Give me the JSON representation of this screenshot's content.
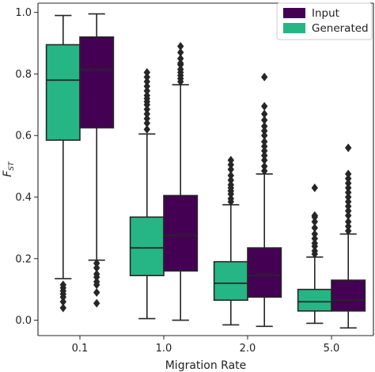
{
  "colors": {
    "input": "#440154",
    "generated": "#26b584",
    "outline": "#262626",
    "flier": "#262626"
  },
  "chart_data": {
    "type": "boxplot",
    "xlabel": "Migration Rate",
    "ylabel": "F_ST",
    "ylabel_main": "F",
    "ylabel_sub": "ST",
    "ylim": [
      -0.05,
      1.03
    ],
    "yticks": [
      "0.0",
      "0.2",
      "0.4",
      "0.6",
      "0.8",
      "1.0"
    ],
    "categories": [
      "0.1",
      "1.0",
      "2.0",
      "5.0"
    ],
    "legend": {
      "placement": "top-right",
      "entries": [
        "Input",
        "Generated"
      ]
    },
    "series": [
      {
        "name": "Generated",
        "boxes": [
          {
            "whisker_low": 0.135,
            "q1": 0.585,
            "median": 0.78,
            "q3": 0.895,
            "whisker_high": 0.99,
            "fliers": [
              0.115,
              0.105,
              0.095,
              0.085,
              0.075,
              0.06,
              0.04
            ]
          },
          {
            "whisker_low": 0.005,
            "q1": 0.145,
            "median": 0.235,
            "q3": 0.335,
            "whisker_high": 0.605,
            "fliers": [
              0.62,
              0.64,
              0.655,
              0.67,
              0.685,
              0.7,
              0.71,
              0.72,
              0.73,
              0.745,
              0.76,
              0.775,
              0.79,
              0.805
            ]
          },
          {
            "whisker_low": -0.015,
            "q1": 0.065,
            "median": 0.12,
            "q3": 0.19,
            "whisker_high": 0.375,
            "fliers": [
              0.385,
              0.395,
              0.41,
              0.42,
              0.43,
              0.44,
              0.455,
              0.47,
              0.49,
              0.505,
              0.52
            ]
          },
          {
            "whisker_low": -0.01,
            "q1": 0.03,
            "median": 0.06,
            "q3": 0.1,
            "whisker_high": 0.205,
            "fliers": [
              0.215,
              0.225,
              0.24,
              0.25,
              0.265,
              0.28,
              0.3,
              0.32,
              0.335,
              0.34,
              0.43
            ]
          }
        ]
      },
      {
        "name": "Input",
        "boxes": [
          {
            "whisker_low": 0.195,
            "q1": 0.625,
            "median": 0.815,
            "q3": 0.92,
            "whisker_high": 0.995,
            "fliers": [
              0.185,
              0.17,
              0.15,
              0.14,
              0.125,
              0.115,
              0.09,
              0.055
            ]
          },
          {
            "whisker_low": 0.0,
            "q1": 0.16,
            "median": 0.275,
            "q3": 0.405,
            "whisker_high": 0.765,
            "fliers": [
              0.775,
              0.785,
              0.795,
              0.805,
              0.815,
              0.83,
              0.835,
              0.85,
              0.87,
              0.89
            ]
          },
          {
            "whisker_low": -0.02,
            "q1": 0.075,
            "median": 0.145,
            "q3": 0.235,
            "whisker_high": 0.475,
            "fliers": [
              0.485,
              0.5,
              0.52,
              0.535,
              0.55,
              0.565,
              0.58,
              0.6,
              0.615,
              0.63,
              0.65,
              0.67,
              0.695,
              0.79
            ]
          },
          {
            "whisker_low": -0.025,
            "q1": 0.03,
            "median": 0.065,
            "q3": 0.13,
            "whisker_high": 0.28,
            "fliers": [
              0.29,
              0.305,
              0.32,
              0.34,
              0.355,
              0.37,
              0.385,
              0.4,
              0.415,
              0.43,
              0.445,
              0.46,
              0.475,
              0.56
            ]
          }
        ]
      }
    ]
  }
}
